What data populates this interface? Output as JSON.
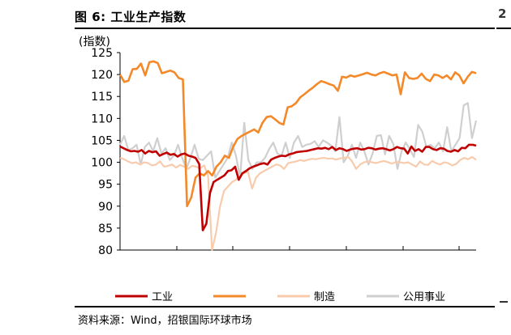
{
  "figure": {
    "label": "图 6:",
    "title": "工业生产指数"
  },
  "source_note": "资料来源：Wind，招银国际环球市场",
  "chart_data": {
    "type": "line",
    "ylabel": "(指数)",
    "ylim": [
      80,
      125
    ],
    "yticks": [
      80,
      85,
      90,
      95,
      100,
      105,
      110,
      115,
      120,
      125
    ],
    "grid": false,
    "legend_placement": "bottom",
    "series": [
      {
        "name": "工业",
        "color": "#c00000",
        "values": [
          103.6,
          103.2,
          102.8,
          102.5,
          102.6,
          102.4,
          102.8,
          102.0,
          102.6,
          102.3,
          102.5,
          101.5,
          101.9,
          102.2,
          101.7,
          101.9,
          101.3,
          101.8,
          102.0,
          101.5,
          101.3,
          101.0,
          99.6,
          84.5,
          86.0,
          93.0,
          95.5,
          96.0,
          96.5,
          97.0,
          98.0,
          98.2,
          99.0,
          96.0,
          97.5,
          98.0,
          98.6,
          99.0,
          99.3,
          99.6,
          99.8,
          99.5,
          100.6,
          101.0,
          101.3,
          101.5,
          101.4,
          101.8,
          102.0,
          102.3,
          102.4,
          102.5,
          102.6,
          102.8,
          103.0,
          103.2,
          103.1,
          103.3,
          103.0,
          103.5,
          102.8,
          103.2,
          103.0,
          102.6,
          102.9,
          103.1,
          103.2,
          102.9,
          103.0,
          103.3,
          103.2,
          102.9,
          103.1,
          103.2,
          103.0,
          102.7,
          103.0,
          103.5,
          103.2,
          103.1,
          102.0,
          103.6,
          102.6,
          103.0,
          102.4,
          103.5,
          103.5,
          103.0,
          102.8,
          103.2,
          103.1,
          102.6,
          102.4,
          102.8,
          102.5,
          103.3,
          103.2,
          104.0,
          104.0,
          103.8
        ]
      },
      {
        "name": "",
        "color": "#f4892a",
        "values": [
          120.0,
          118.3,
          118.6,
          121.2,
          121.3,
          122.5,
          119.8,
          122.8,
          123.0,
          122.6,
          120.3,
          120.6,
          120.9,
          120.5,
          119.2,
          118.9,
          90.0,
          92.0,
          96.5,
          97.5,
          97.0,
          98.0,
          97.0,
          99.0,
          100.0,
          101.5,
          101.0,
          103.5,
          105.3,
          106.0,
          106.5,
          107.0,
          107.5,
          106.8,
          109.0,
          110.3,
          110.5,
          109.8,
          109.0,
          108.6,
          112.5,
          112.8,
          113.5,
          114.8,
          115.5,
          116.3,
          117.0,
          117.8,
          118.5,
          118.2,
          117.8,
          117.5,
          116.3,
          119.5,
          119.3,
          119.8,
          119.5,
          119.8,
          120.1,
          120.4,
          120.0,
          119.8,
          120.3,
          120.6,
          120.2,
          119.8,
          120.0,
          115.5,
          120.5,
          119.2,
          119.0,
          119.2,
          120.2,
          119.0,
          118.5,
          120.0,
          119.8,
          119.2,
          119.8,
          118.9,
          120.5,
          119.8,
          118.0,
          119.5,
          120.6,
          120.3
        ]
      },
      {
        "name": "制造",
        "color": "#f8cbad",
        "values": [
          101.0,
          100.7,
          100.2,
          99.8,
          100.0,
          99.5,
          100.0,
          99.8,
          99.3,
          99.5,
          100.2,
          99.0,
          99.2,
          99.5,
          98.8,
          99.4,
          99.0,
          98.5,
          99.2,
          99.0,
          98.6,
          99.3,
          97.0,
          80.0,
          84.0,
          90.0,
          93.5,
          94.5,
          95.5,
          96.0,
          97.0,
          97.5,
          97.8,
          94.0,
          96.5,
          97.5,
          98.0,
          98.5,
          99.0,
          99.5,
          99.3,
          98.5,
          99.8,
          100.0,
          100.2,
          100.5,
          100.3,
          100.6,
          100.8,
          100.7,
          100.9,
          101.0,
          100.8,
          100.9,
          100.6,
          100.9,
          101.0,
          101.2,
          100.2,
          98.5,
          99.5,
          100.0,
          100.2,
          100.0,
          99.8,
          100.1,
          100.3,
          100.0,
          99.7,
          100.1,
          100.0,
          99.8,
          100.0,
          99.5,
          99.0,
          100.2,
          99.5,
          99.4,
          100.3,
          99.8,
          99.5,
          100.0,
          99.8,
          99.3,
          99.6,
          100.5,
          101.0,
          100.7,
          101.2,
          100.6
        ]
      },
      {
        "name": "公用事业",
        "color": "#d0cfcf",
        "values": [
          104.0,
          106.0,
          102.8,
          103.2,
          104.0,
          99.5,
          103.5,
          104.5,
          102.5,
          105.5,
          102.0,
          103.2,
          100.5,
          101.5,
          104.0,
          101.0,
          98.5,
          101.0,
          104.0,
          100.8,
          100.5,
          101.5,
          102.5,
          96.5,
          98.0,
          99.5,
          101.0,
          104.5,
          101.5,
          96.5,
          109.0,
          100.5,
          98.5,
          100.0,
          100.0,
          101.0,
          103.0,
          104.5,
          102.0,
          101.5,
          104.5,
          101.0,
          104.5,
          106.0,
          103.5,
          104.0,
          104.2,
          104.8,
          103.5,
          105.0,
          104.5,
          103.8,
          102.5,
          110.3,
          100.0,
          101.5,
          104.0,
          101.0,
          104.5,
          102.5,
          99.5,
          102.0,
          106.0,
          106.2,
          101.8,
          106.0,
          104.2,
          98.5,
          102.5,
          104.5,
          103.0,
          101.2,
          108.5,
          107.0,
          103.5,
          104.0,
          103.2,
          104.5,
          102.5,
          108.0,
          102.5,
          104.0,
          105.5,
          113.0,
          113.5,
          105.5,
          109.5
        ]
      }
    ]
  }
}
